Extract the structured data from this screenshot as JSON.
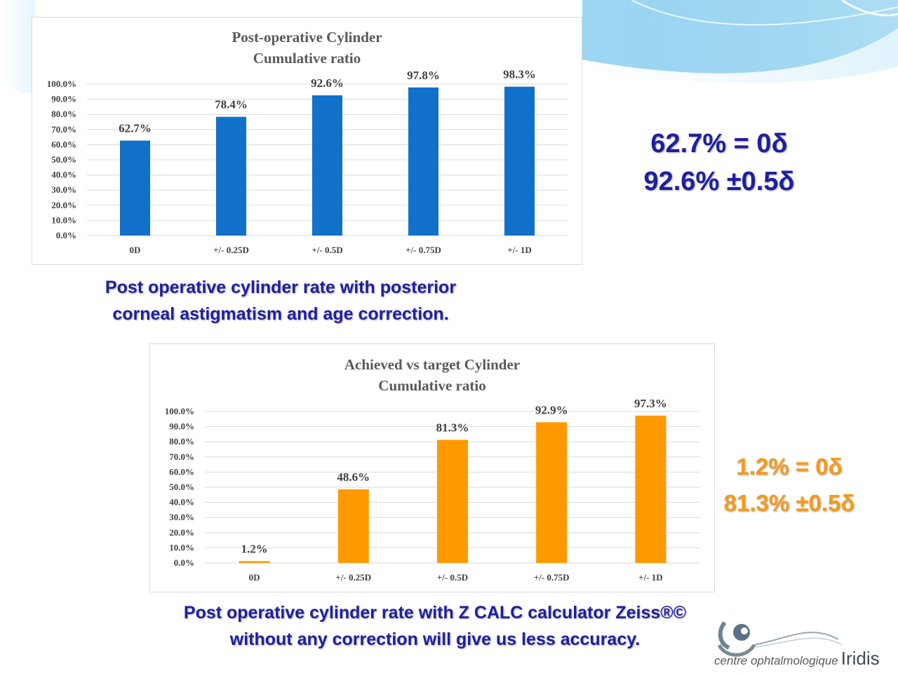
{
  "chart_data": [
    {
      "type": "bar",
      "title": [
        "Post-operative Cylinder",
        "Cumulative ratio"
      ],
      "categories": [
        "0D",
        "+/- 0.25D",
        "+/- 0.5D",
        "+/- 0.75D",
        "+/- 1D"
      ],
      "values": [
        62.7,
        78.4,
        92.6,
        97.8,
        98.3
      ],
      "data_labels": [
        "62.7%",
        "78.4%",
        "92.6%",
        "97.8%",
        "98.3%"
      ],
      "ylim": [
        0,
        100
      ],
      "yticks": [
        "0.0%",
        "10.0%",
        "20.0%",
        "30.0%",
        "40.0%",
        "50.0%",
        "60.0%",
        "70.0%",
        "80.0%",
        "90.0%",
        "100.0%"
      ],
      "grid": true,
      "color": "#1170c9"
    },
    {
      "type": "bar",
      "title": [
        "Achieved vs target Cylinder",
        "Cumulative ratio"
      ],
      "categories": [
        "0D",
        "+/- 0.25D",
        "+/- 0.5D",
        "+/- 0.75D",
        "+/- 1D"
      ],
      "values": [
        1.2,
        48.6,
        81.3,
        92.9,
        97.3
      ],
      "data_labels": [
        "1.2%",
        "48.6%",
        "81.3%",
        "92.9%",
        "97.3%"
      ],
      "ylim": [
        0,
        100
      ],
      "yticks": [
        "0.0%",
        "10.0%",
        "20.0%",
        "30.0%",
        "40.0%",
        "50.0%",
        "60.0%",
        "70.0%",
        "80.0%",
        "90.0%",
        "100.0%"
      ],
      "grid": true,
      "color": "#ff9900"
    }
  ],
  "captions": {
    "chart1": [
      "Post operative cylinder rate with posterior",
      "corneal astigmatism and age correction."
    ],
    "chart2": [
      "Post operative cylinder rate with Z CALC calculator Zeiss®©",
      "without any correction will give us less accuracy."
    ]
  },
  "summary1": [
    "62.7% = 0δ",
    "92.6% ±0.5δ"
  ],
  "summary2": [
    "1.2% = 0δ",
    "81.3% ±0.5δ"
  ],
  "colors": {
    "summary1": "#1f1f9e",
    "summary2": "#f39b1c",
    "caption": "#1f1f9e"
  },
  "logo": {
    "subtitle": "centre ophtalmologique",
    "brand": "Iridis",
    "icon": "eye-logo-icon"
  }
}
